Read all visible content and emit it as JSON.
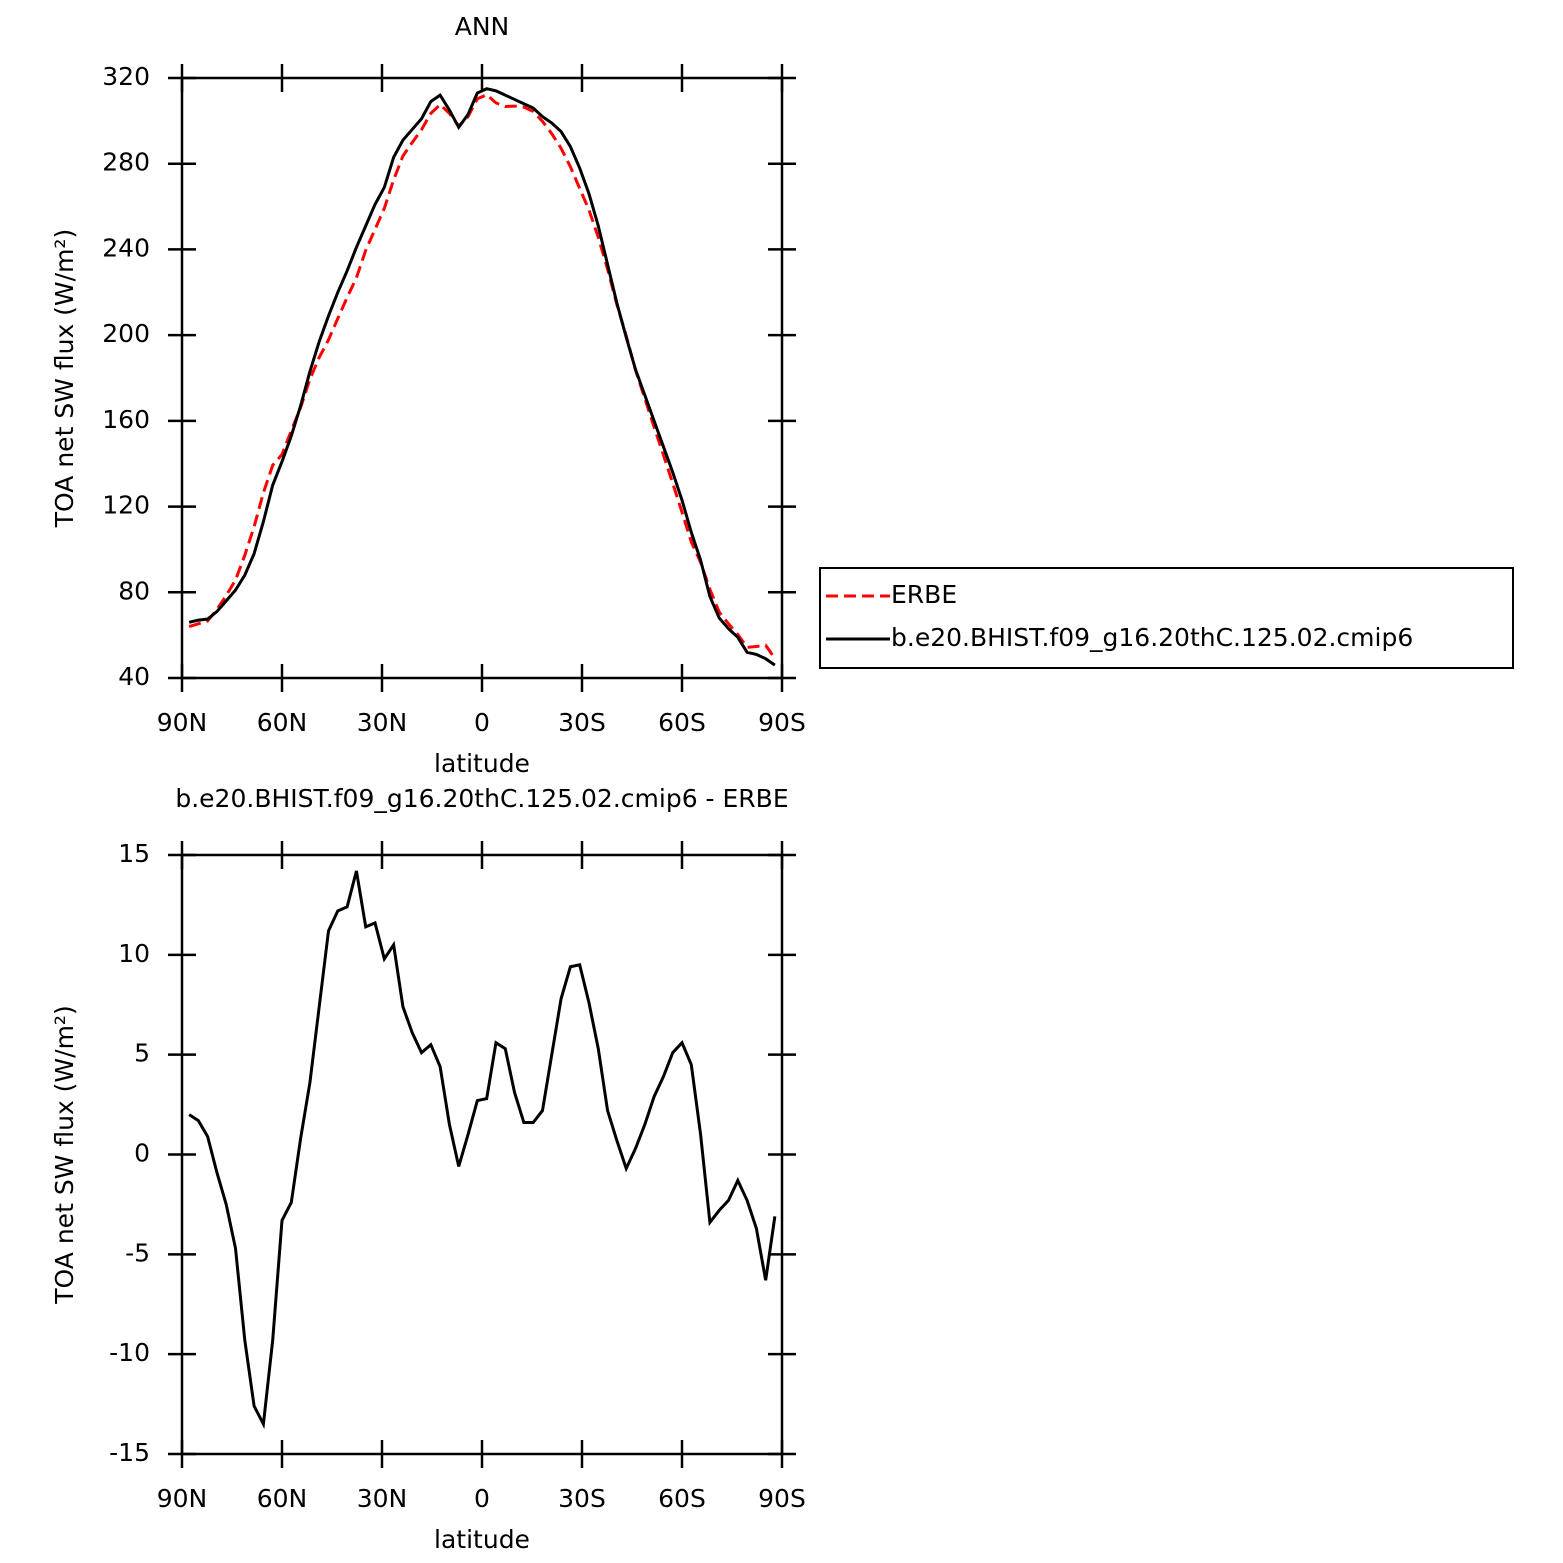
{
  "chart_data": [
    {
      "type": "line",
      "title": "ANN",
      "xlabel": "latitude",
      "ylabel": "TOA net SW flux (W/m²)",
      "x": [
        87.86,
        85.1,
        82.31,
        79.53,
        76.74,
        73.95,
        71.16,
        68.37,
        65.58,
        62.79,
        60.0,
        57.21,
        54.42,
        51.63,
        48.84,
        46.05,
        43.26,
        40.46,
        37.67,
        34.88,
        32.09,
        29.3,
        26.51,
        23.72,
        20.93,
        18.14,
        15.35,
        12.56,
        9.77,
        6.98,
        4.19,
        1.4,
        -1.4,
        -4.19,
        -6.98,
        -9.77,
        -12.56,
        -15.35,
        -18.14,
        -20.93,
        -23.72,
        -26.51,
        -29.3,
        -32.09,
        -34.88,
        -37.67,
        -40.46,
        -43.26,
        -46.05,
        -48.84,
        -51.63,
        -54.42,
        -57.21,
        -60.0,
        -62.79,
        -65.58,
        -68.37,
        -71.16,
        -73.95,
        -76.74,
        -79.53,
        -82.31,
        -85.1,
        -87.86
      ],
      "xlim": [
        90,
        -90
      ],
      "xticks": [
        {
          "value": 90,
          "label": "90N"
        },
        {
          "value": 60,
          "label": "60N"
        },
        {
          "value": 30,
          "label": "30N"
        },
        0,
        {
          "value": -30,
          "label": "30S"
        },
        {
          "value": -60,
          "label": "60S"
        },
        {
          "value": -90,
          "label": "90S"
        }
      ],
      "ylim": [
        40,
        320
      ],
      "yticks": [
        40,
        80,
        120,
        160,
        200,
        240,
        280,
        320
      ],
      "legend": "right",
      "series": [
        {
          "name": "ERBE",
          "color": "#ff0000",
          "line_style": "dashed",
          "values": [
            64.0,
            65.3,
            66.6,
            71.9,
            78.5,
            85.7,
            97.3,
            110.6,
            126.5,
            139.3,
            144.3,
            155.4,
            166.2,
            179.4,
            189.6,
            197.8,
            207.8,
            217.6,
            226.8,
            239.6,
            249.4,
            259.2,
            272.5,
            283.6,
            289.9,
            295.9,
            303.5,
            307.6,
            303.5,
            297.6,
            302.0,
            310.3,
            312.2,
            308.4,
            306.7,
            306.9,
            306.4,
            304.4,
            299.8,
            294.0,
            287.2,
            278.6,
            268.5,
            258.4,
            245.7,
            230.8,
            214.3,
            199.7,
            183.7,
            170.5,
            157.1,
            144.1,
            130.9,
            117.4,
            103.5,
            94.0,
            81.4,
            70.8,
            65.3,
            60.3,
            54.3,
            54.7,
            55.3,
            49.1
          ]
        },
        {
          "name": "b.e20.BHIST.f09_g16.20thC.125.02.cmip6",
          "color": "#000000",
          "line_style": "solid",
          "values": [
            66,
            67,
            67.5,
            71,
            76,
            81,
            88,
            98,
            113,
            130,
            141,
            153,
            167,
            183,
            197,
            209,
            220,
            230,
            241,
            251,
            261,
            269,
            283,
            291,
            296,
            301,
            309,
            312,
            305,
            297,
            303,
            313,
            315,
            314,
            312,
            310,
            308,
            306,
            302,
            299,
            295,
            288,
            278,
            266,
            251,
            233,
            215,
            199,
            184,
            172,
            160,
            148,
            136,
            123,
            108,
            95,
            78,
            68,
            63,
            59,
            52,
            51,
            49,
            46
          ]
        }
      ]
    },
    {
      "type": "line",
      "title": "b.e20.BHIST.f09_g16.20thC.125.02.cmip6 - ERBE",
      "xlabel": "latitude",
      "ylabel": "TOA net SW flux (W/m²)",
      "x": [
        87.86,
        85.1,
        82.31,
        79.53,
        76.74,
        73.95,
        71.16,
        68.37,
        65.58,
        62.79,
        60.0,
        57.21,
        54.42,
        51.63,
        48.84,
        46.05,
        43.26,
        40.46,
        37.67,
        34.88,
        32.09,
        29.3,
        26.51,
        23.72,
        20.93,
        18.14,
        15.35,
        12.56,
        9.77,
        6.98,
        4.19,
        1.4,
        -1.4,
        -4.19,
        -6.98,
        -9.77,
        -12.56,
        -15.35,
        -18.14,
        -20.93,
        -23.72,
        -26.51,
        -29.3,
        -32.09,
        -34.88,
        -37.67,
        -40.46,
        -43.26,
        -46.05,
        -48.84,
        -51.63,
        -54.42,
        -57.21,
        -60.0,
        -62.79,
        -65.58,
        -68.37,
        -71.16,
        -73.95,
        -76.74,
        -79.53,
        -82.31,
        -85.1,
        -87.86
      ],
      "xlim": [
        90,
        -90
      ],
      "xticks": [
        {
          "value": 90,
          "label": "90N"
        },
        {
          "value": 60,
          "label": "60N"
        },
        {
          "value": 30,
          "label": "30N"
        },
        0,
        {
          "value": -30,
          "label": "30S"
        },
        {
          "value": -60,
          "label": "60S"
        },
        {
          "value": -90,
          "label": "90S"
        }
      ],
      "ylim": [
        -15,
        15
      ],
      "yticks": [
        -15,
        -10,
        -5,
        0,
        5,
        10,
        15
      ],
      "series": [
        {
          "color": "#000000",
          "line_style": "solid",
          "values": [
            2.0,
            1.7,
            0.9,
            -0.9,
            -2.5,
            -4.7,
            -9.3,
            -12.6,
            -13.5,
            -9.3,
            -3.3,
            -2.4,
            0.8,
            3.6,
            7.4,
            11.2,
            12.2,
            12.4,
            14.2,
            11.4,
            11.6,
            9.8,
            10.5,
            7.4,
            6.1,
            5.1,
            5.5,
            4.4,
            1.5,
            -0.6,
            1.0,
            2.7,
            2.8,
            5.6,
            5.3,
            3.1,
            1.6,
            1.6,
            2.2,
            5.0,
            7.8,
            9.4,
            9.5,
            7.6,
            5.3,
            2.2,
            0.7,
            -0.7,
            0.3,
            1.5,
            2.9,
            3.9,
            5.1,
            5.6,
            4.5,
            1.0,
            -3.4,
            -2.8,
            -2.3,
            -1.3,
            -2.3,
            -3.7,
            -6.3,
            -3.1
          ]
        }
      ]
    }
  ]
}
